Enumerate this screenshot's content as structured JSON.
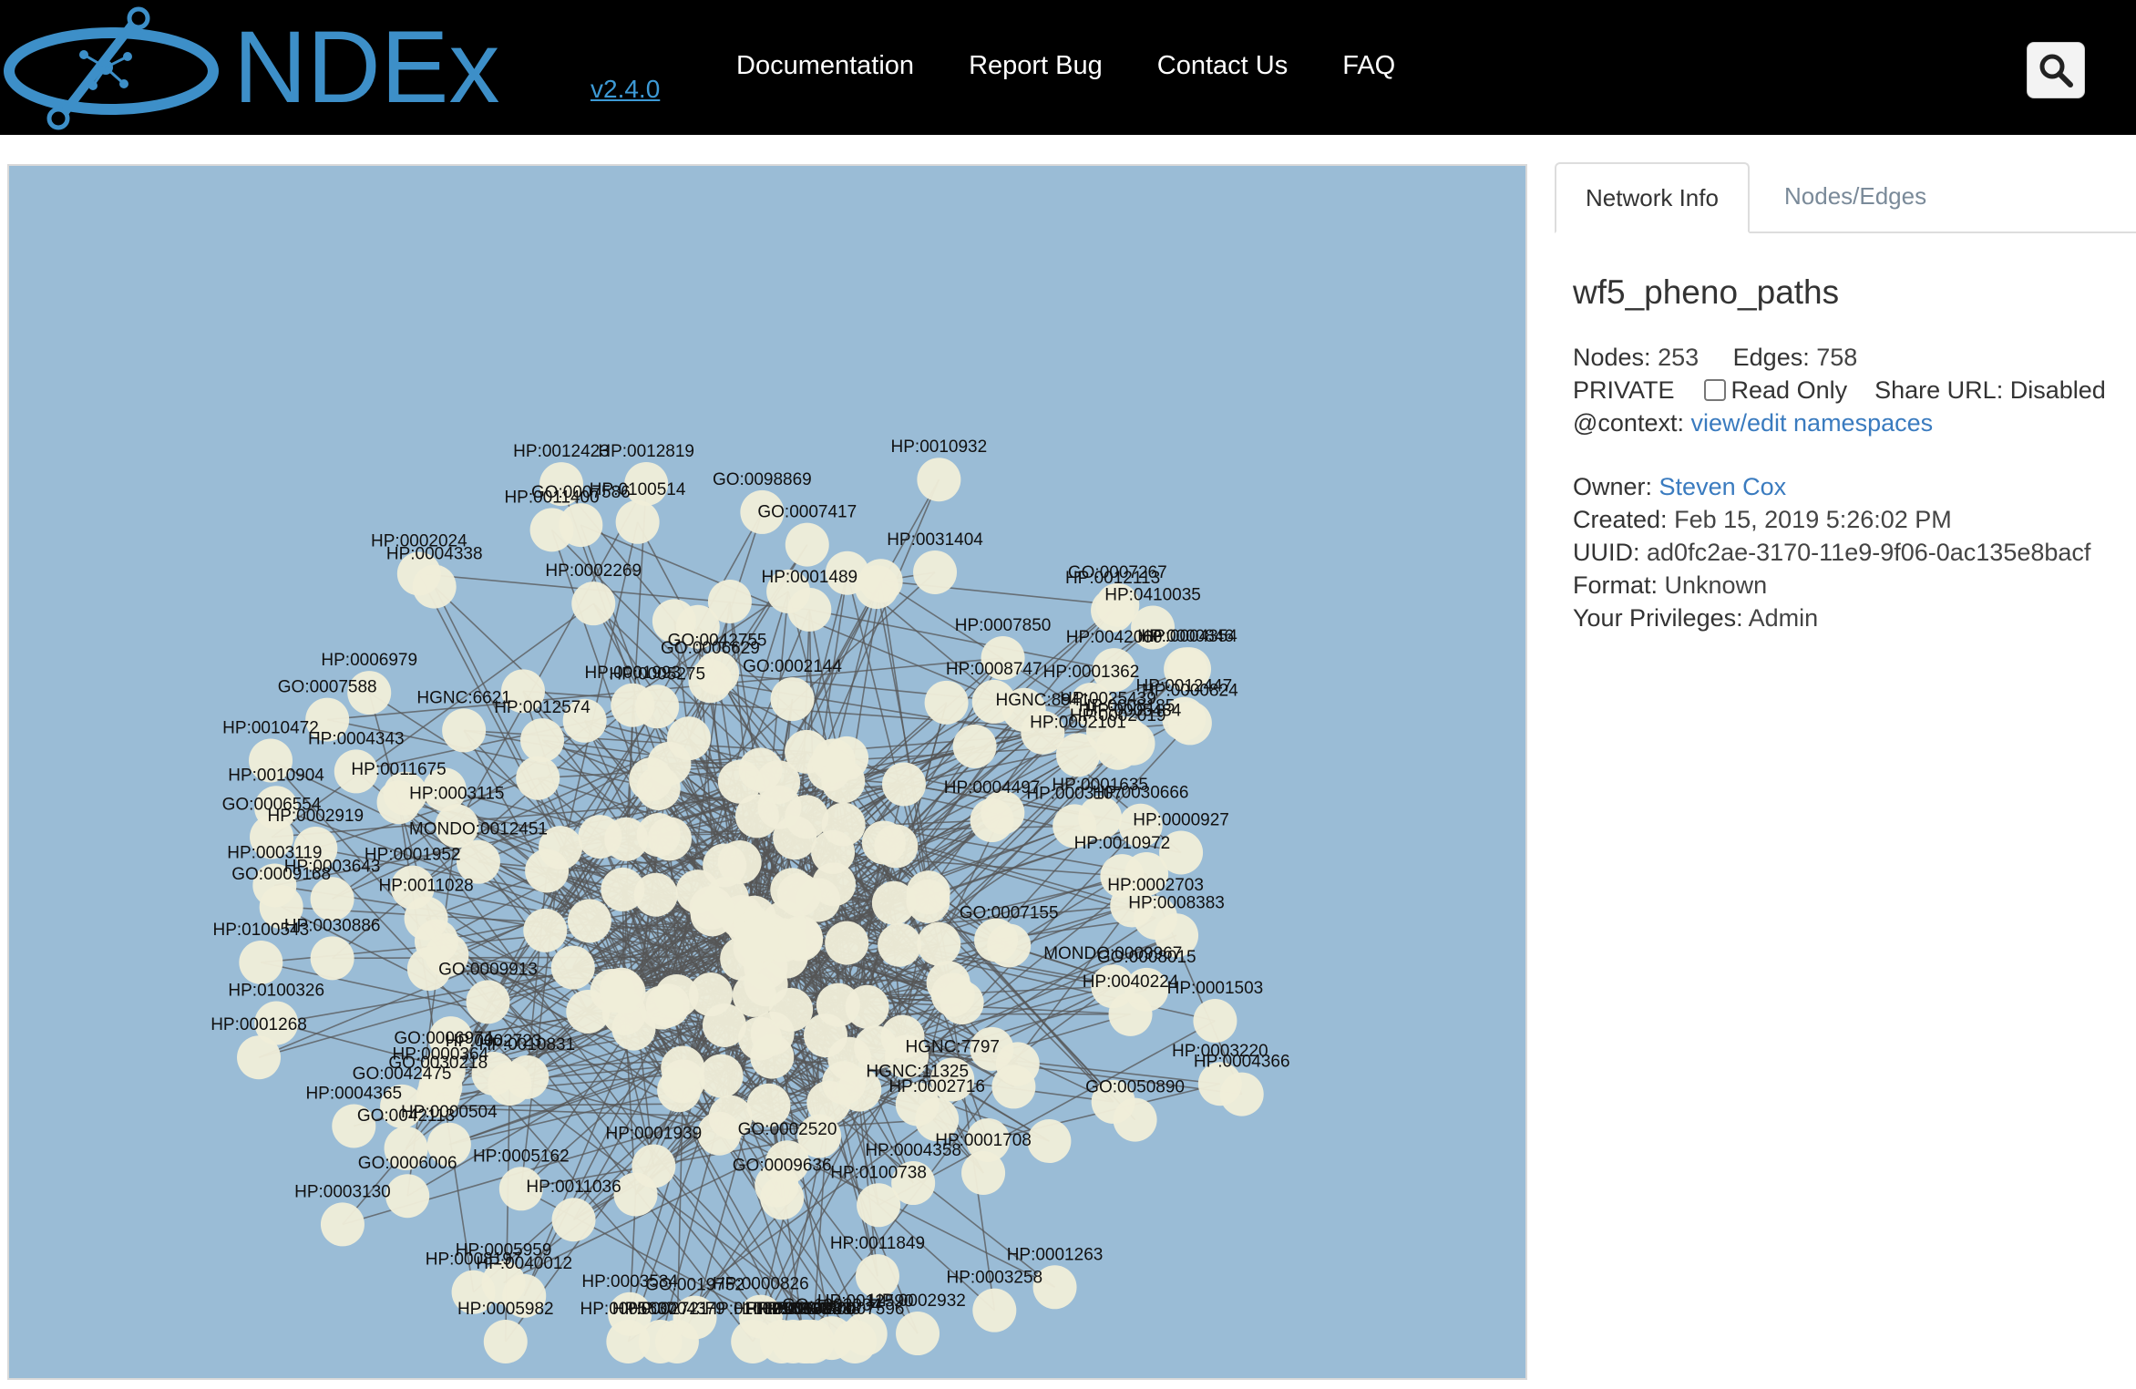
{
  "header": {
    "logo_text": "NDEx",
    "version": "v2.4.0",
    "nav": [
      "Documentation",
      "Report Bug",
      "Contact Us",
      "FAQ"
    ],
    "search_icon": "search-icon"
  },
  "tabs": [
    "Network Info",
    "Nodes/Edges"
  ],
  "network": {
    "name": "wf5_pheno_paths",
    "nodes_label": "Nodes:",
    "nodes": "253",
    "edges_label": "Edges:",
    "edges": "758",
    "visibility": "PRIVATE",
    "read_only_label": "Read Only",
    "read_only_checked": false,
    "share_url": "Share URL: Disabled",
    "context_label": "@context:",
    "context_link": "view/edit namespaces",
    "owner_label": "Owner:",
    "owner": "Steven Cox",
    "created_label": "Created:",
    "created": "Feb 15, 2019 5:26:02 PM",
    "uuid_label": "UUID:",
    "uuid": "ad0fc2ae-3170-11e9-9f06-0ac135e8bacf",
    "format_label": "Format:",
    "format": "Unknown",
    "privileges_label": "Your Privileges:",
    "privileges": "Admin"
  },
  "graph": {
    "colors": {
      "background": "#9abcd6",
      "node": "#efedd8",
      "edge": "#555555",
      "label": "#111111"
    },
    "labels": [
      "HP:0002019",
      "HP:0012590",
      "GO:0006554",
      "GO:0098869",
      "HP:0010904",
      "HP:0004338",
      "HP:0010907",
      "HP:0100514",
      "HP:0003220",
      "HP:0100326",
      "HP:0010932",
      "HP:0003643",
      "HP:0012423",
      "GO:0007588",
      "HP:0004354",
      "HP:0040012",
      "HP:0005982",
      "HP:0003534",
      "HP:0005637",
      "HP:0010472",
      "HP:0012113",
      "GO:0019752",
      "GO:0009168",
      "HP:0002932",
      "HP:0004366",
      "HP:0005959",
      "HP:0000824",
      "HP:0003258",
      "HP:0002721",
      "HP:0004365",
      "HP:0002919",
      "HP:0004370",
      "HP:0001268",
      "HP:0002024",
      "HP:0003119",
      "GO:0007586",
      "HP:0003130",
      "HP:0100755",
      "HP:0008197",
      "GO:0006006",
      "GO:0007267",
      "HP:0031404",
      "GO:0042113",
      "GO:0050890",
      "GO:0007596",
      "HP:0001263",
      "HP:0006979",
      "HP:0005484",
      "HP:0410035",
      "HP:0000846",
      "HP:0004379",
      "HP:0000826",
      "HP:0008383",
      "HP:0001338",
      "HP:0100543",
      "HP:0005384",
      "HP:0010988",
      "HP:0042060",
      "HP:0030886",
      "HP:0025439",
      "HP:0012447",
      "HP:0001362",
      "HP:0000927",
      "HP:0011400",
      "GO:1903034",
      "HP:0004343",
      "GO:0007417",
      "HP:0012819",
      "HP:0001503",
      "HP:0008185",
      "HP:0005275",
      "HP:0040224",
      "HP:0007850",
      "HP:0030666",
      "GO:0030218",
      "GO:0042755",
      "HP:0000504",
      "HP:0010831",
      "HP:0011675",
      "HP:0012574",
      "HP:0011036",
      "HP:0000364",
      "HP:0001939",
      "HP:0002703",
      "HP:0008747",
      "HP:0011849",
      "HP:0001708",
      "HP:0003115",
      "HP:0001635",
      "HP:0100738",
      "HP:0004358",
      "HP:0001952",
      "HP:0011028",
      "HP:0005162",
      "MONDO:0009967",
      "MONDO:0012451",
      "GO:0006629",
      "GO:0009636",
      "GO:0006974",
      "GO:0002144",
      "HP:0002101",
      "HP:0002269",
      "GO:0008015",
      "HGNC:6621",
      "HGNC:8941",
      "HGNC:11325",
      "HGNC:7797",
      "GO:0007155",
      "HP:0003107",
      "HP:0002716",
      "HP:0001993",
      "GO:0009913",
      "GO:0042475",
      "HP:0001489",
      "HP:0002723",
      "GO:0002520",
      "HP:0010972",
      "HP:0004497"
    ]
  }
}
